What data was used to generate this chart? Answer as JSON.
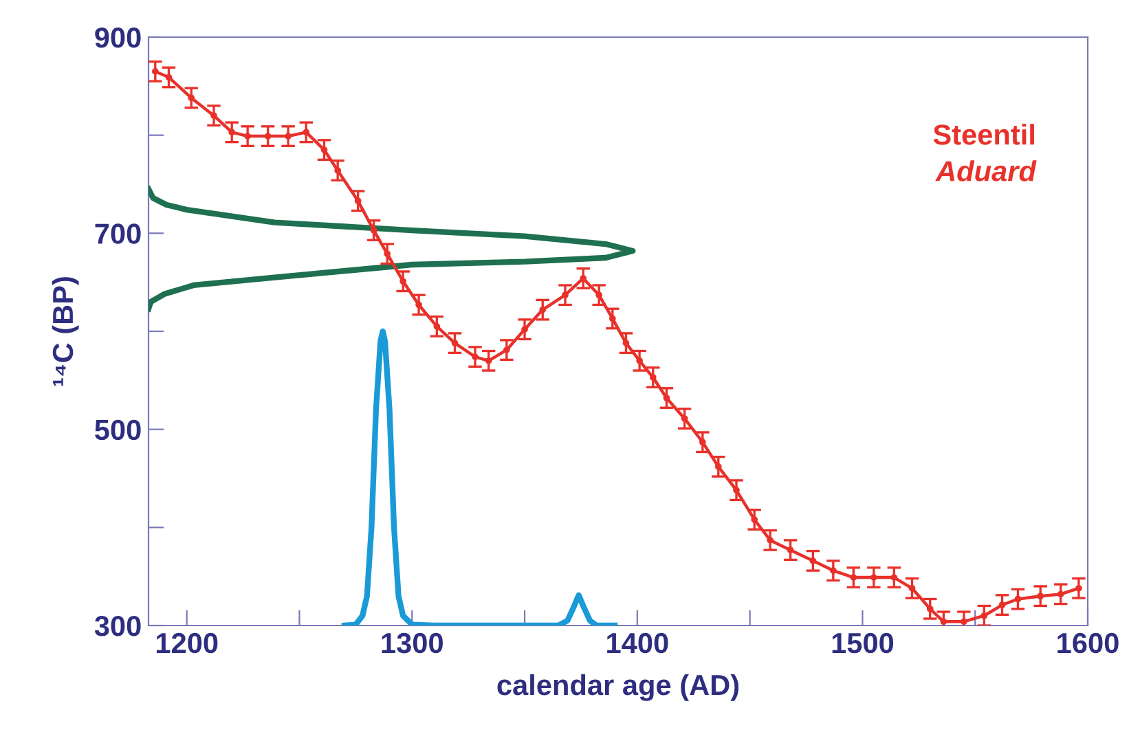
{
  "chart_data": {
    "type": "line",
    "xlabel": "calendar age (AD)",
    "ylabel": "¹⁴C (BP)",
    "xlim": [
      1183,
      1600
    ],
    "ylim": [
      300,
      900
    ],
    "xticks": [
      1200,
      {
        "value": 1250,
        "label": null
      },
      1300,
      {
        "value": 1350,
        "label": null
      },
      1400,
      {
        "value": 1450,
        "label": null
      },
      1500,
      {
        "value": 1550,
        "label": null
      },
      1600
    ],
    "yticks": [
      300,
      {
        "value": 400,
        "label": null
      },
      500,
      {
        "value": 600,
        "label": null
      },
      700,
      {
        "value": 800,
        "label": null
      },
      900
    ],
    "annotations": [
      "Steentil",
      "Aduard"
    ],
    "grid": false,
    "legend": false,
    "series": [
      {
        "color": "#e8312a",
        "marker": "circle",
        "x": [
          1186,
          1192,
          1202,
          1212,
          1220,
          1227,
          1236,
          1245,
          1253,
          1261,
          1267,
          1276,
          1283,
          1289,
          1296,
          1303,
          1311,
          1319,
          1328,
          1334,
          1342,
          1350,
          1358,
          1368,
          1376,
          1383,
          1389,
          1395,
          1401,
          1407,
          1413,
          1421,
          1429,
          1436,
          1444,
          1452,
          1459,
          1468,
          1478,
          1487,
          1496,
          1505,
          1514,
          1522,
          1530,
          1536,
          1545,
          1554,
          1562,
          1569,
          1579,
          1588,
          1596
        ],
        "values": [
          865,
          859,
          838,
          820,
          803,
          799,
          799,
          799,
          803,
          785,
          764,
          733,
          703,
          679,
          651,
          627,
          605,
          588,
          574,
          570,
          581,
          602,
          622,
          637,
          654,
          637,
          613,
          588,
          570,
          553,
          532,
          511,
          487,
          462,
          438,
          408,
          387,
          377,
          366,
          356,
          349,
          349,
          349,
          338,
          317,
          304,
          304,
          310,
          321,
          327,
          330,
          332,
          338
        ],
        "errors": [
          10,
          10,
          10,
          10,
          10,
          10,
          10,
          10,
          10,
          10,
          10,
          10,
          10,
          10,
          10,
          10,
          10,
          10,
          10,
          10,
          10,
          10,
          10,
          10,
          10,
          10,
          10,
          10,
          10,
          10,
          10,
          10,
          10,
          10,
          10,
          10,
          10,
          10,
          10,
          10,
          10,
          10,
          10,
          10,
          10,
          10,
          10,
          10,
          10,
          10,
          10,
          10,
          10
        ]
      },
      {
        "color": "#1e7050",
        "marker": "none",
        "x": [
          1183,
          1185,
          1191,
          1200,
          1239,
          1300,
          1350,
          1386,
          1398,
          1386,
          1350,
          1300,
          1239,
          1203,
          1190,
          1184,
          1183
        ],
        "values": [
          745,
          736,
          729,
          724,
          711,
          703,
          697,
          689,
          682,
          675,
          671,
          668,
          655,
          647,
          638,
          630,
          623
        ]
      },
      {
        "color": "#1a9ad6",
        "marker": "none",
        "x": [
          1270,
          1275,
          1278,
          1280,
          1282,
          1284,
          1286,
          1287,
          1288,
          1290,
          1292,
          1294,
          1296,
          1300,
          1310,
          1365,
          1369,
          1372,
          1374,
          1376,
          1379,
          1382,
          1390
        ],
        "values": [
          300,
          301,
          310,
          330,
          400,
          520,
          590,
          600,
          590,
          520,
          400,
          330,
          310,
          301,
          300,
          300,
          305,
          320,
          331,
          320,
          305,
          300,
          300
        ]
      }
    ]
  }
}
